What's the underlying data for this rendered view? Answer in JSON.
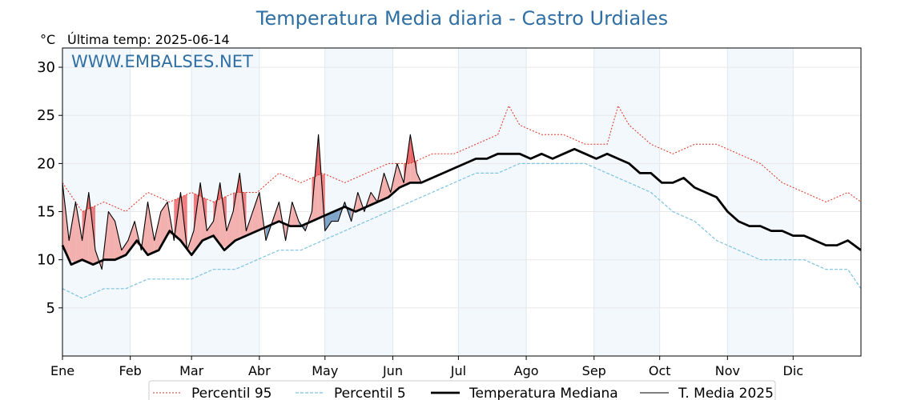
{
  "chart_data": {
    "type": "line",
    "title": "Temperatura Media diaria - Castro Urdiales",
    "unit_label": "°C",
    "last_temp_label": "Última temp: 2025-06-14",
    "watermark": "WWW.EMBALSES.NET",
    "ylim": [
      0,
      32
    ],
    "yticks": [
      5,
      10,
      15,
      20,
      25,
      30
    ],
    "months": [
      "Ene",
      "Feb",
      "Mar",
      "Abr",
      "May",
      "Jun",
      "Jul",
      "Ago",
      "Sep",
      "Oct",
      "Nov",
      "Dic"
    ],
    "month_start_days": [
      1,
      32,
      60,
      91,
      121,
      152,
      182,
      213,
      244,
      274,
      305,
      335
    ],
    "grid": true,
    "legend_position": "bottom",
    "series": [
      {
        "name": "Percentil 95",
        "color": "#e03020",
        "style": "dotted",
        "x": [
          1,
          10,
          20,
          30,
          40,
          50,
          60,
          70,
          80,
          90,
          100,
          110,
          120,
          130,
          140,
          150,
          160,
          170,
          180,
          190,
          200,
          205,
          210,
          220,
          230,
          240,
          250,
          255,
          260,
          270,
          280,
          290,
          300,
          310,
          320,
          330,
          340,
          350,
          360,
          366
        ],
        "y": [
          18,
          15,
          16,
          15,
          17,
          16,
          17,
          16,
          17,
          17,
          19,
          18,
          19,
          18,
          19,
          20,
          20,
          21,
          21,
          22,
          23,
          26,
          24,
          23,
          23,
          22,
          22,
          26,
          24,
          22,
          21,
          22,
          22,
          21,
          20,
          18,
          17,
          16,
          17,
          16
        ]
      },
      {
        "name": "Percentil 5",
        "color": "#7ec3e0",
        "style": "dashed",
        "x": [
          1,
          10,
          20,
          30,
          40,
          50,
          60,
          70,
          80,
          90,
          100,
          110,
          120,
          130,
          140,
          150,
          160,
          170,
          180,
          190,
          200,
          210,
          220,
          230,
          240,
          250,
          260,
          270,
          280,
          290,
          300,
          310,
          320,
          330,
          340,
          350,
          360,
          366
        ],
        "y": [
          7,
          6,
          7,
          7,
          8,
          8,
          8,
          9,
          9,
          10,
          11,
          11,
          12,
          13,
          14,
          15,
          16,
          17,
          18,
          19,
          19,
          20,
          20,
          20,
          20,
          19,
          18,
          17,
          15,
          14,
          12,
          11,
          10,
          10,
          10,
          9,
          9,
          7
        ]
      },
      {
        "name": "Temperatura Mediana",
        "color": "#000000",
        "style": "thick",
        "x": [
          1,
          5,
          10,
          15,
          20,
          25,
          30,
          35,
          40,
          45,
          50,
          55,
          60,
          65,
          70,
          75,
          80,
          85,
          90,
          95,
          100,
          105,
          110,
          115,
          120,
          125,
          130,
          135,
          140,
          145,
          150,
          155,
          160,
          165,
          170,
          175,
          180,
          185,
          190,
          195,
          200,
          205,
          210,
          215,
          220,
          225,
          230,
          235,
          240,
          245,
          250,
          255,
          260,
          265,
          270,
          275,
          280,
          285,
          290,
          295,
          300,
          305,
          310,
          315,
          320,
          325,
          330,
          335,
          340,
          345,
          350,
          355,
          360,
          366
        ],
        "y": [
          11.5,
          9.5,
          10,
          9.5,
          10,
          10,
          10.5,
          12,
          10.5,
          11,
          13,
          12,
          10.5,
          12,
          12.5,
          11,
          12,
          12.5,
          13,
          13.5,
          14,
          13.5,
          13.5,
          14,
          14.5,
          15,
          15.5,
          15,
          15.5,
          16,
          16.5,
          17.5,
          18,
          18,
          18.5,
          19,
          19.5,
          20,
          20.5,
          20.5,
          21,
          21,
          21,
          20.5,
          21,
          20.5,
          21,
          21.5,
          21,
          20.5,
          21,
          20.5,
          20,
          19,
          19,
          18,
          18,
          18.5,
          17.5,
          17,
          16.5,
          15,
          14,
          13.5,
          13.5,
          13,
          13,
          12.5,
          12.5,
          12,
          11.5,
          11.5,
          12,
          11
        ]
      },
      {
        "name": "T. Media 2025",
        "color": "#000000",
        "style": "thin",
        "x": [
          1,
          4,
          7,
          10,
          13,
          16,
          19,
          22,
          25,
          28,
          31,
          34,
          37,
          40,
          43,
          46,
          49,
          52,
          55,
          58,
          61,
          64,
          67,
          70,
          73,
          76,
          79,
          82,
          85,
          88,
          91,
          94,
          97,
          100,
          103,
          106,
          109,
          112,
          115,
          118,
          121,
          124,
          127,
          130,
          133,
          136,
          139,
          142,
          145,
          148,
          151,
          154,
          157,
          160,
          163,
          165
        ],
        "y": [
          18,
          12,
          16,
          12,
          17,
          11,
          9,
          15,
          14,
          11,
          12,
          14,
          11,
          16,
          12,
          15,
          16,
          12,
          17,
          11,
          13,
          18,
          13,
          14,
          18,
          13,
          15,
          19,
          13,
          15,
          17,
          12,
          14,
          16,
          12,
          16,
          14,
          13,
          15,
          23,
          13,
          14,
          14,
          16,
          14,
          17,
          15,
          17,
          16,
          19,
          17,
          20,
          18,
          23,
          19,
          18
        ]
      }
    ]
  }
}
